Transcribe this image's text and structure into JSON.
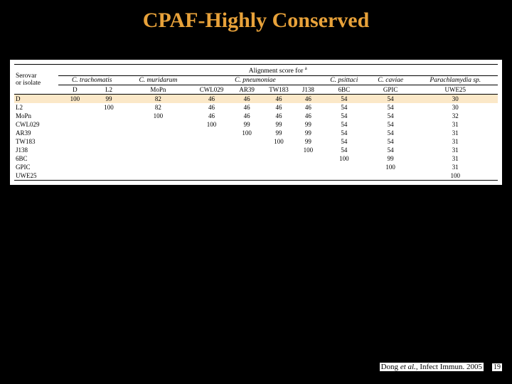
{
  "title": "CPAF-Highly Conserved",
  "table": {
    "alignment_header": "Alignment score for",
    "serovar_header_line1": "Serovar",
    "serovar_header_line2": "or isolate",
    "species": [
      {
        "label": "C. trachomatis",
        "cols": [
          "D",
          "L2"
        ]
      },
      {
        "label": "C. muridarum",
        "cols": [
          "MoPn"
        ]
      },
      {
        "label": "C. pneumoniae",
        "cols": [
          "CWL029",
          "AR39",
          "TW183",
          "J138"
        ]
      },
      {
        "label": "C. psittaci",
        "cols": [
          "6BC"
        ]
      },
      {
        "label": "C. caviae",
        "cols": [
          "GPIC"
        ]
      },
      {
        "label": "Parachlamydia sp.",
        "cols": [
          "UWE25"
        ],
        "plain": true
      }
    ],
    "rows": [
      {
        "label": "D",
        "vals": [
          "100",
          "99",
          "82",
          "46",
          "46",
          "46",
          "46",
          "54",
          "54",
          "30"
        ],
        "highlight": true
      },
      {
        "label": "L2",
        "vals": [
          "",
          "100",
          "82",
          "46",
          "46",
          "46",
          "46",
          "54",
          "54",
          "30"
        ]
      },
      {
        "label": "MoPn",
        "vals": [
          "",
          "",
          "100",
          "46",
          "46",
          "46",
          "46",
          "54",
          "54",
          "32"
        ]
      },
      {
        "label": "CWL029",
        "vals": [
          "",
          "",
          "",
          "100",
          "99",
          "99",
          "99",
          "54",
          "54",
          "31"
        ]
      },
      {
        "label": "AR39",
        "vals": [
          "",
          "",
          "",
          "",
          "100",
          "99",
          "99",
          "54",
          "54",
          "31"
        ]
      },
      {
        "label": "TW183",
        "vals": [
          "",
          "",
          "",
          "",
          "",
          "100",
          "99",
          "54",
          "54",
          "31"
        ]
      },
      {
        "label": "J138",
        "vals": [
          "",
          "",
          "",
          "",
          "",
          "",
          "100",
          "54",
          "54",
          "31"
        ]
      },
      {
        "label": "6BC",
        "vals": [
          "",
          "",
          "",
          "",
          "",
          "",
          "",
          "100",
          "99",
          "31"
        ]
      },
      {
        "label": "GPIC",
        "vals": [
          "",
          "",
          "",
          "",
          "",
          "",
          "",
          "",
          "100",
          "31"
        ]
      },
      {
        "label": "UWE25",
        "vals": [
          "",
          "",
          "",
          "",
          "",
          "",
          "",
          "",
          "",
          "100"
        ]
      }
    ]
  },
  "footer": {
    "citation_pre": "Dong ",
    "citation_em": "et al.",
    "citation_post": ", Infect Immun. 2005"
  },
  "pagenum": "19"
}
